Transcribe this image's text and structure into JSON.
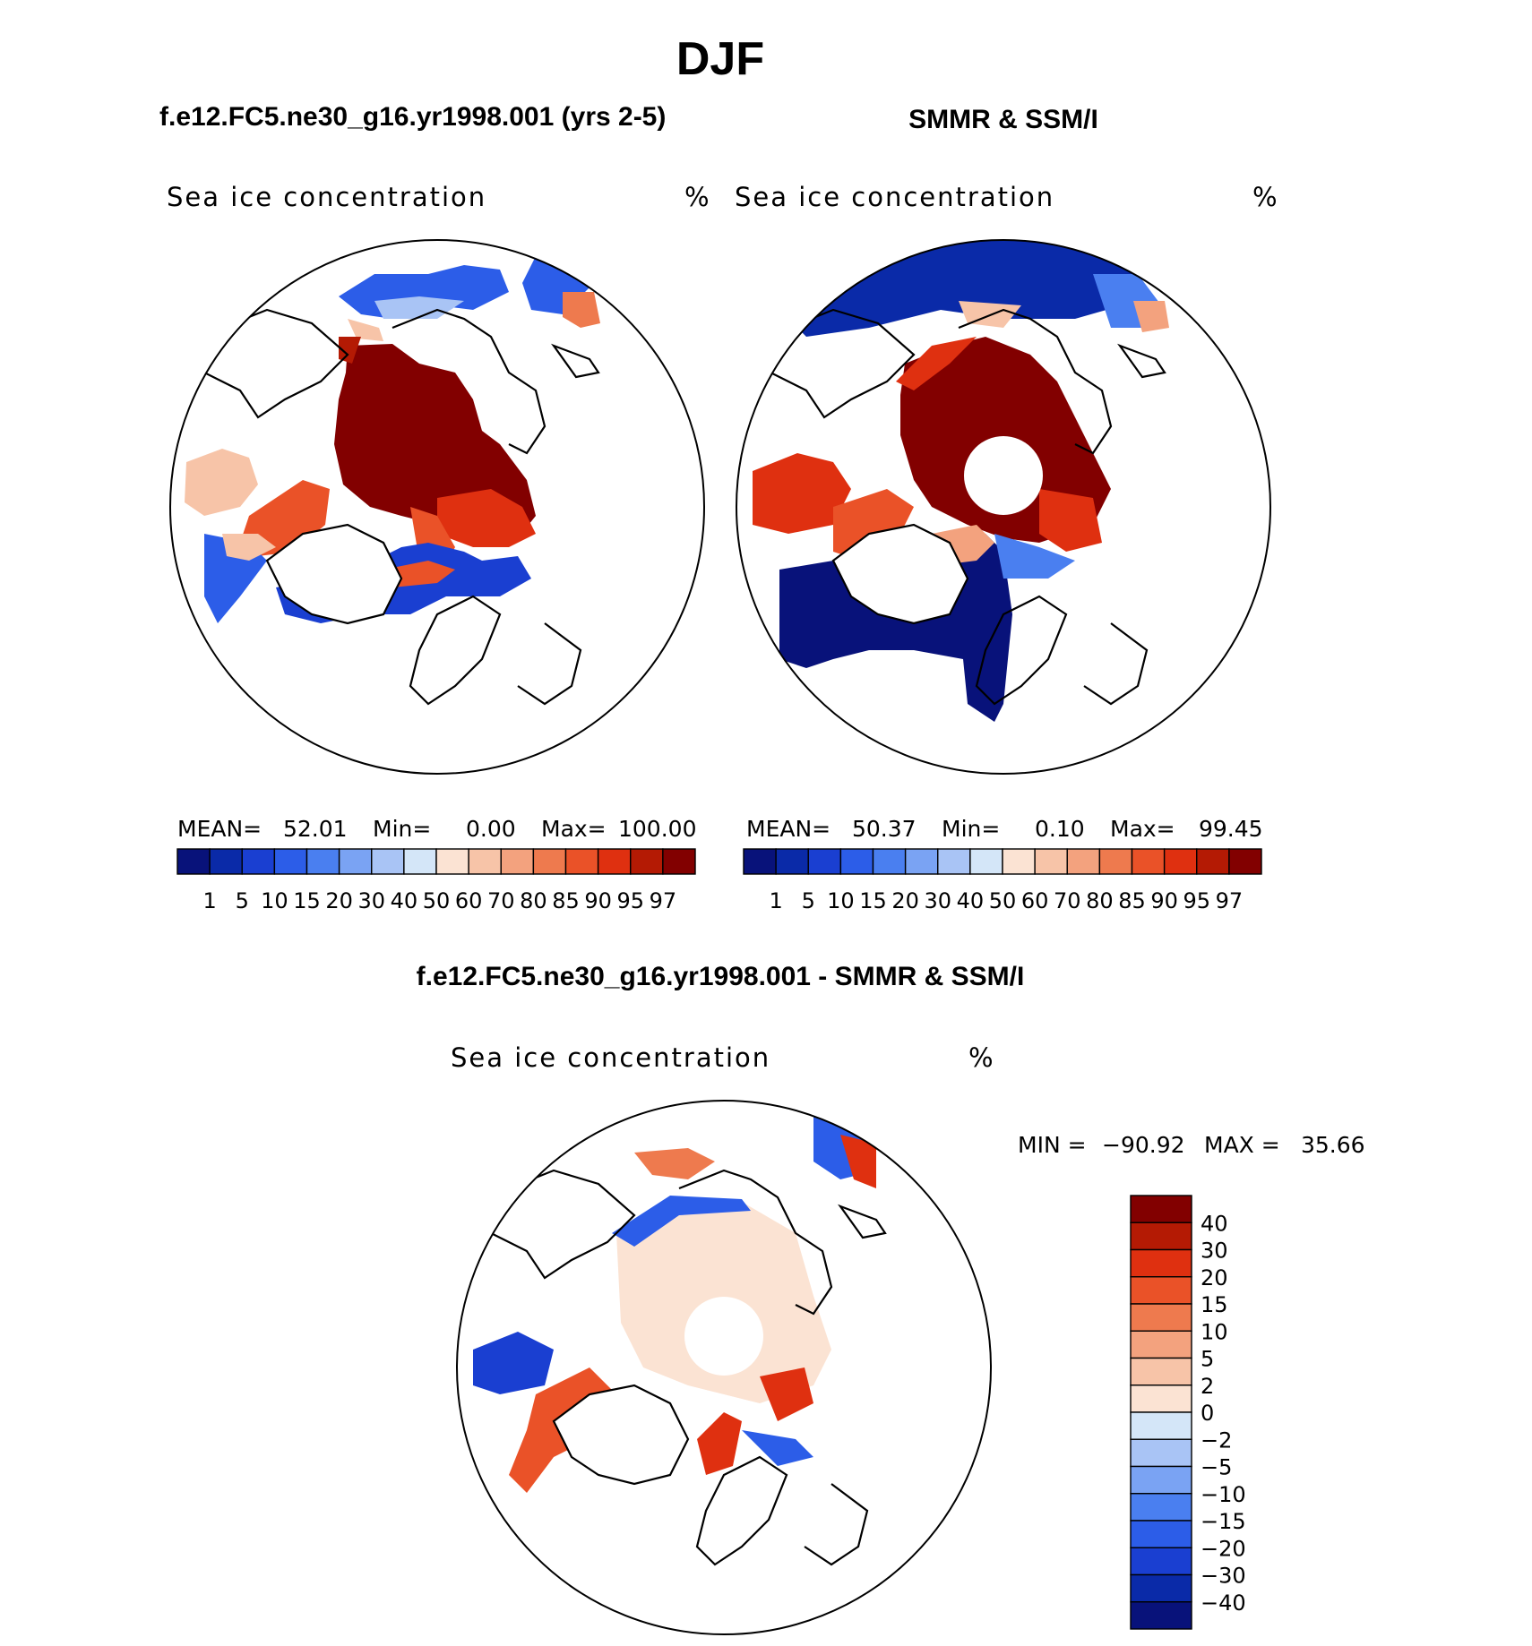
{
  "season_title": "DJF",
  "panels": [
    {
      "title": "f.e12.FC5.ne30_g16.yr1998.001 (yrs 2-5)",
      "variable": "Sea ice concentration",
      "units": "%",
      "stats": {
        "mean_label": "MEAN=",
        "mean": "52.01",
        "min_label": "Min=",
        "min": "0.00",
        "max_label": "Max=",
        "max": "100.00"
      }
    },
    {
      "title": "SMMR & SSM/I",
      "variable": "Sea ice concentration",
      "units": "%",
      "stats": {
        "mean_label": "MEAN=",
        "mean": "50.37",
        "min_label": "Min=",
        "min": "0.10",
        "max_label": "Max=",
        "max": "99.45"
      }
    },
    {
      "title": "f.e12.FC5.ne30_g16.yr1998.001 - SMMR & SSM/I",
      "variable": "Sea ice concentration",
      "units": "%",
      "stats": {
        "min_label": "MIN =",
        "min": "−90.92",
        "max_label": "MAX =",
        "max": "35.66"
      }
    }
  ],
  "chart_data": [
    {
      "type": "heatmap",
      "projection": "north-polar-stereographic",
      "title": "f.e12.FC5.ne30_g16.yr1998.001 (yrs 2-5)",
      "field": "Sea ice concentration",
      "units": "%",
      "mean": 52.01,
      "min": 0.0,
      "max": 100.0,
      "colorbar_levels": [
        "1",
        "5",
        "10",
        "15",
        "20",
        "30",
        "40",
        "50",
        "60",
        "70",
        "80",
        "85",
        "90",
        "95",
        "97"
      ],
      "colorbar_colors": [
        "#08127a",
        "#0a2aa8",
        "#1a3fd1",
        "#2c5de8",
        "#4a7ff0",
        "#7aa3f3",
        "#a9c4f5",
        "#d4e6f8",
        "#fbe3d3",
        "#f7c4a8",
        "#f3a27e",
        "#ee7a4e",
        "#ea5228",
        "#df3010",
        "#b41a04",
        "#820000"
      ]
    },
    {
      "type": "heatmap",
      "projection": "north-polar-stereographic",
      "title": "SMMR & SSM/I",
      "field": "Sea ice concentration",
      "units": "%",
      "mean": 50.37,
      "min": 0.1,
      "max": 99.45,
      "colorbar_levels": [
        "1",
        "5",
        "10",
        "15",
        "20",
        "30",
        "40",
        "50",
        "60",
        "70",
        "80",
        "85",
        "90",
        "95",
        "97"
      ],
      "colorbar_colors": [
        "#08127a",
        "#0a2aa8",
        "#1a3fd1",
        "#2c5de8",
        "#4a7ff0",
        "#7aa3f3",
        "#a9c4f5",
        "#d4e6f8",
        "#fbe3d3",
        "#f7c4a8",
        "#f3a27e",
        "#ee7a4e",
        "#ea5228",
        "#df3010",
        "#b41a04",
        "#820000"
      ]
    },
    {
      "type": "heatmap",
      "projection": "north-polar-stereographic",
      "title": "f.e12.FC5.ne30_g16.yr1998.001 - SMMR & SSM/I",
      "field": "Sea ice concentration",
      "units": "%",
      "min": -90.92,
      "max": 35.66,
      "colorbar_levels": [
        "40",
        "30",
        "20",
        "15",
        "10",
        "5",
        "2",
        "0",
        "−2",
        "−5",
        "−10",
        "−15",
        "−20",
        "−30",
        "−40"
      ],
      "colorbar_colors": [
        "#820000",
        "#b41a04",
        "#df3010",
        "#ea5228",
        "#ee7a4e",
        "#f3a27e",
        "#f7c4a8",
        "#fbe3d3",
        "#d4e6f8",
        "#a9c4f5",
        "#7aa3f3",
        "#4a7ff0",
        "#2c5de8",
        "#1a3fd1",
        "#0a2aa8",
        "#08127a"
      ]
    }
  ]
}
